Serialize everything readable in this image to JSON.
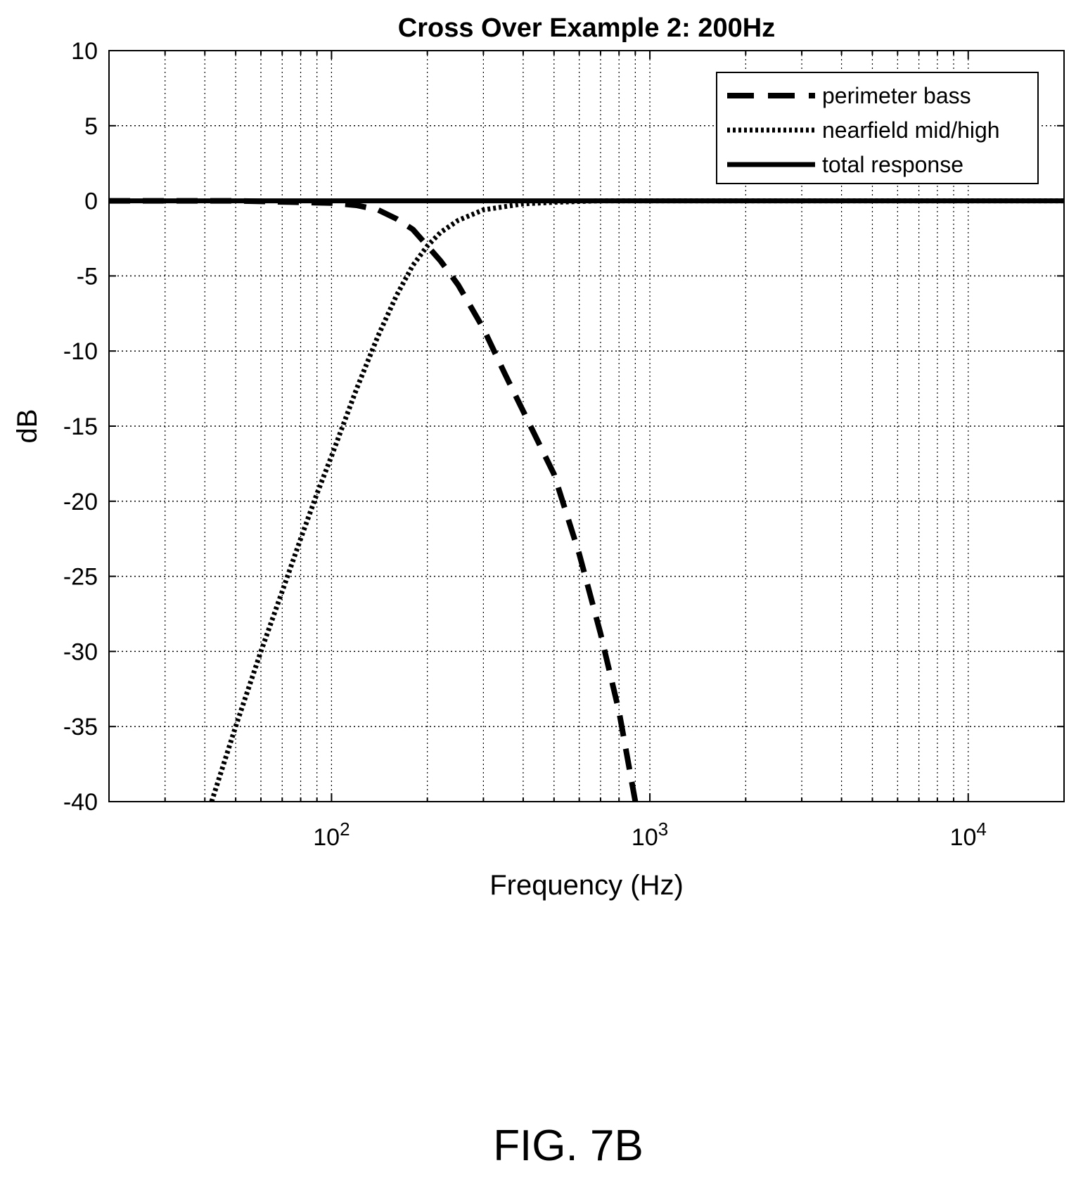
{
  "chart_data": {
    "type": "line",
    "title": "Cross Over Example 2: 200Hz",
    "xlabel": "Frequency (Hz)",
    "ylabel": "dB",
    "x_scale": "log",
    "xlim": [
      20,
      20000
    ],
    "ylim": [
      -40,
      10
    ],
    "x_ticks": [
      {
        "value": 100,
        "base": "10",
        "exp": "2"
      },
      {
        "value": 1000,
        "base": "10",
        "exp": "3"
      },
      {
        "value": 10000,
        "base": "10",
        "exp": "4"
      }
    ],
    "y_ticks": [
      10,
      5,
      0,
      -5,
      -10,
      -15,
      -20,
      -25,
      -30,
      -35,
      -40
    ],
    "grid": true,
    "legend_position": "top-right",
    "series": [
      {
        "name": "perimeter bass",
        "style": "dashed",
        "x": [
          20,
          50,
          80,
          100,
          120,
          140,
          160,
          180,
          200,
          220,
          250,
          300,
          350,
          400,
          500,
          600,
          700,
          800,
          900
        ],
        "y": [
          0,
          0,
          -0.1,
          -0.15,
          -0.3,
          -0.6,
          -1.2,
          -1.9,
          -3,
          -4,
          -5.6,
          -8.5,
          -11.5,
          -14,
          -18.2,
          -23.5,
          -28.8,
          -34,
          -40
        ]
      },
      {
        "name": "nearfield mid/high",
        "style": "dotted",
        "x": [
          42,
          50,
          60,
          70,
          80,
          90,
          100,
          120,
          140,
          160,
          180,
          200,
          220,
          250,
          300,
          400,
          500,
          700,
          1000,
          20000
        ],
        "y": [
          -40,
          -35,
          -30,
          -26,
          -22.5,
          -19.5,
          -17,
          -12.5,
          -9,
          -6.3,
          -4.3,
          -3,
          -2.1,
          -1.3,
          -0.6,
          -0.2,
          -0.1,
          0,
          0,
          0
        ]
      },
      {
        "name": "total response",
        "style": "solid",
        "x": [
          20,
          20000
        ],
        "y": [
          0,
          0
        ]
      }
    ]
  },
  "figure_label": "FIG. 7B"
}
